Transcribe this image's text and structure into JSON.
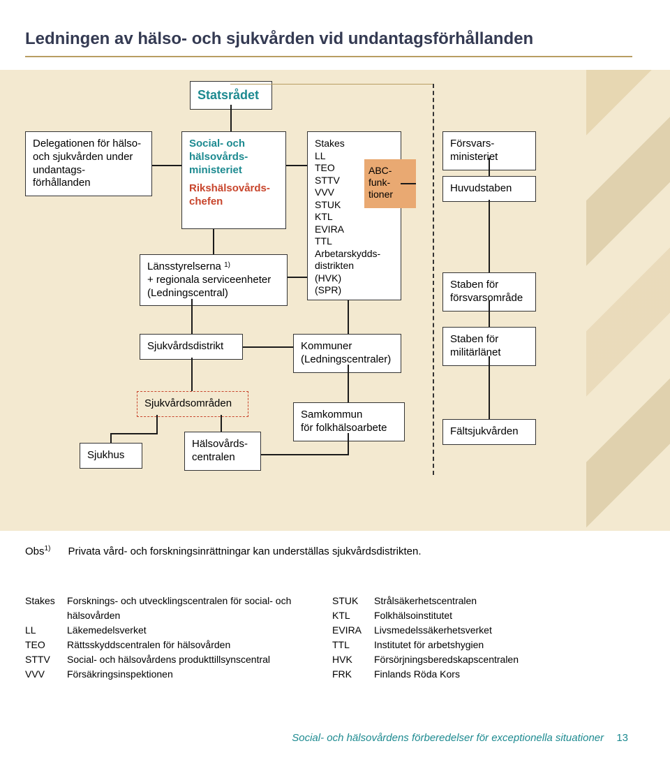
{
  "colors": {
    "cream": "#f3e9d0",
    "teal": "#1d8a90",
    "red": "#c8452c",
    "abc_fill": "#e9a972",
    "rule": "#b89e62"
  },
  "title": "Ledningen av hälso- och sjukvården vid undantagsförhållanden",
  "boxes": {
    "statsradet": "Statsrådet",
    "delegation": "Delegationen för hälso- och sjukvården under undantags-\nförhållanden",
    "ministeriet_line1": "Social- och hälsovårds-\nministeriet",
    "ministeriet_line2": "Rikshälsovårds-\nchefen",
    "stakes_list": "Stakes\nLL\nTEO\nSTTV\nVVV\nSTUK\nKTL\nEVIRA\nTTL\nArbetarskydds-\ndistrikten\n(HVK)\n(SPR)",
    "abc": "ABC-\nfunk-\ntioner",
    "lansstyrelserna": "Länsstyrelserna\n+ regionala serviceenheter\n(Ledningscentral)",
    "lans_sup": "1)",
    "sjukvardsdistrikt": "Sjukvårdsdistrikt",
    "kommuner": "Kommuner\n(Ledningscentraler)",
    "sjukvardsomraden": "Sjukvårdsområden",
    "sjukhus": "Sjukhus",
    "halsovardscentralen": "Hälsovårds-\ncentralen",
    "samkommun": "Samkommun\nför folkhälsoarbete",
    "forsvarsministeriet": "Försvars-\nministeriet",
    "huvudstaben": "Huvudstaben",
    "staben_omrade": "Staben för försvarsområde",
    "staben_lanet": "Staben för militärlänet",
    "faltsjukvarden": "Fältsjukvården"
  },
  "obs": {
    "label": "Obs",
    "sup": "1)",
    "text": "Privata vård- och forskningsinrättningar kan underställas sjukvårdsdistrikten."
  },
  "glossary_left": [
    {
      "abbr": "Stakes",
      "full": "Forsknings- och utvecklingscentralen för social- och hälsovården"
    },
    {
      "abbr": "LL",
      "full": "Läkemedelsverket"
    },
    {
      "abbr": "TEO",
      "full": "Rättsskyddscentralen för hälsovården"
    },
    {
      "abbr": "STTV",
      "full": "Social- och hälsovårdens produkttillsynscentral"
    },
    {
      "abbr": "VVV",
      "full": "Försäkringsinspektionen"
    }
  ],
  "glossary_right": [
    {
      "abbr": "STUK",
      "full": "Strålsäkerhetscentralen"
    },
    {
      "abbr": "KTL",
      "full": "Folkhälsoinstitutet"
    },
    {
      "abbr": "EVIRA",
      "full": "Livsmedelssäkerhetsverket"
    },
    {
      "abbr": "TTL",
      "full": "Institutet för arbetshygien"
    },
    {
      "abbr": "HVK",
      "full": "Försörjningsberedskapscentralen"
    },
    {
      "abbr": "FRK",
      "full": "Finlands Röda Kors"
    }
  ],
  "footer": {
    "text": "Social- och hälsovårdens förberedelser för exceptionella situationer",
    "page": "13"
  }
}
